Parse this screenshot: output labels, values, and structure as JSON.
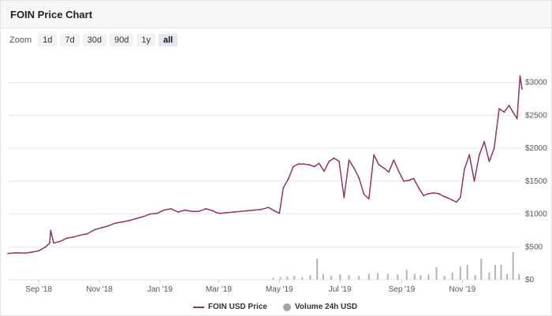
{
  "header": {
    "title": "FOIN Price Chart"
  },
  "zoom": {
    "label": "Zoom",
    "options": [
      "1d",
      "7d",
      "30d",
      "90d",
      "1y",
      "all"
    ],
    "active": "all"
  },
  "colors": {
    "price": "#8f3569",
    "volume": "#b3b3b3",
    "grid": "#e6e6e6"
  },
  "chart_data": {
    "type": "line",
    "x_ticks": [
      "Sep '18",
      "Nov '18",
      "Jan '19",
      "Mar '19",
      "May '19",
      "Jul '19",
      "Sep '19",
      "Nov '19"
    ],
    "y_ticks": [
      "$0",
      "$500",
      "$1000",
      "$1500",
      "$2000",
      "$2500",
      "$3000"
    ],
    "ylim": [
      0,
      3200
    ],
    "grid": true,
    "legend_position": "bottom",
    "series": [
      {
        "name": "FOIN USD Price",
        "x": [
          "2018-08-01",
          "2018-08-10",
          "2018-08-18",
          "2018-08-25",
          "2018-09-01",
          "2018-09-08",
          "2018-09-12",
          "2018-09-13",
          "2018-09-16",
          "2018-09-22",
          "2018-09-29",
          "2018-10-06",
          "2018-10-13",
          "2018-10-20",
          "2018-10-27",
          "2018-11-03",
          "2018-11-10",
          "2018-11-17",
          "2018-11-24",
          "2018-12-01",
          "2018-12-08",
          "2018-12-15",
          "2018-12-22",
          "2018-12-29",
          "2019-01-05",
          "2019-01-12",
          "2019-01-19",
          "2019-01-26",
          "2019-02-02",
          "2019-02-09",
          "2019-02-16",
          "2019-02-23",
          "2019-02-27",
          "2019-03-02",
          "2019-03-09",
          "2019-03-16",
          "2019-03-23",
          "2019-03-30",
          "2019-04-06",
          "2019-04-13",
          "2019-04-20",
          "2019-04-27",
          "2019-05-01",
          "2019-05-05",
          "2019-05-10",
          "2019-05-15",
          "2019-05-20",
          "2019-05-25",
          "2019-05-31",
          "2019-06-05",
          "2019-06-10",
          "2019-06-15",
          "2019-06-20",
          "2019-06-25",
          "2019-06-30",
          "2019-07-05",
          "2019-07-10",
          "2019-07-15",
          "2019-07-20",
          "2019-07-25",
          "2019-07-30",
          "2019-08-04",
          "2019-08-09",
          "2019-08-14",
          "2019-08-19",
          "2019-08-24",
          "2019-08-29",
          "2019-09-03",
          "2019-09-08",
          "2019-09-13",
          "2019-09-18",
          "2019-09-23",
          "2019-09-28",
          "2019-10-03",
          "2019-10-08",
          "2019-10-13",
          "2019-10-18",
          "2019-10-22",
          "2019-10-26",
          "2019-10-30",
          "2019-11-03",
          "2019-11-08",
          "2019-11-13",
          "2019-11-18",
          "2019-11-23",
          "2019-11-28",
          "2019-12-03",
          "2019-12-08",
          "2019-12-13",
          "2019-12-18",
          "2019-12-22",
          "2019-12-26",
          "2019-12-29",
          "2019-12-31"
        ],
        "y": [
          400,
          410,
          405,
          420,
          440,
          500,
          560,
          750,
          560,
          580,
          630,
          650,
          680,
          700,
          760,
          790,
          820,
          860,
          880,
          900,
          930,
          960,
          1000,
          1010,
          1060,
          1080,
          1030,
          1060,
          1040,
          1040,
          1080,
          1050,
          1020,
          1010,
          1020,
          1030,
          1040,
          1050,
          1060,
          1070,
          1100,
          1040,
          1010,
          1400,
          1530,
          1720,
          1760,
          1760,
          1750,
          1720,
          1770,
          1650,
          1800,
          1850,
          1800,
          1250,
          1820,
          1700,
          1550,
          1300,
          1230,
          1900,
          1750,
          1700,
          1640,
          1820,
          1650,
          1500,
          1510,
          1540,
          1400,
          1280,
          1310,
          1320,
          1310,
          1270,
          1240,
          1210,
          1180,
          1250,
          1680,
          1900,
          1500,
          1900,
          2100,
          1800,
          2000,
          2600,
          2550,
          2650,
          2550,
          2450,
          3100,
          2900
        ]
      },
      {
        "name": "Volume 24h USD",
        "x": [
          "2019-04-25",
          "2019-05-02",
          "2019-05-09",
          "2019-05-16",
          "2019-05-24",
          "2019-06-01",
          "2019-06-08",
          "2019-06-14",
          "2019-06-22",
          "2019-07-01",
          "2019-07-10",
          "2019-07-20",
          "2019-07-30",
          "2019-08-08",
          "2019-08-18",
          "2019-08-28",
          "2019-09-06",
          "2019-09-14",
          "2019-09-20",
          "2019-09-28",
          "2019-10-06",
          "2019-10-14",
          "2019-10-22",
          "2019-10-30",
          "2019-11-06",
          "2019-11-14",
          "2019-11-20",
          "2019-11-28",
          "2019-12-04",
          "2019-12-10",
          "2019-12-16",
          "2019-12-22",
          "2019-12-28"
        ],
        "y": [
          30,
          40,
          50,
          60,
          40,
          70,
          320,
          90,
          60,
          80,
          70,
          60,
          90,
          100,
          90,
          80,
          150,
          90,
          70,
          80,
          190,
          60,
          110,
          200,
          230,
          70,
          320,
          110,
          230,
          230,
          90,
          420,
          90
        ]
      }
    ]
  }
}
